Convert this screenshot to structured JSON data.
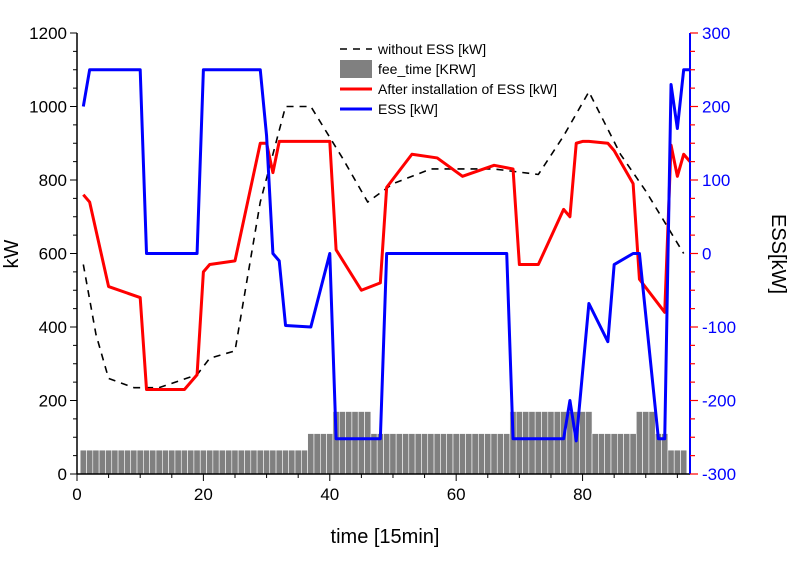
{
  "chart_data": {
    "type": "line",
    "title": "",
    "xlabel": "time [15min]",
    "ylabel": "kW",
    "y2label": "ESS[kW]",
    "xlim": [
      0,
      97
    ],
    "ylim": [
      0,
      1200
    ],
    "y2lim": [
      -300,
      300
    ],
    "x_ticks": [
      "0",
      "20",
      "40",
      "60",
      "80"
    ],
    "y_ticks": [
      "0",
      "200",
      "400",
      "600",
      "800",
      "1000",
      "1200"
    ],
    "y2_ticks": [
      "-300",
      "-200",
      "-100",
      "0",
      "100",
      "200",
      "300"
    ],
    "legend_position": "top-center",
    "grid": false,
    "series": [
      {
        "name": "without ESS [kW]",
        "axis": "left",
        "style": "dashed",
        "color": "#000000",
        "x": [
          1,
          3,
          5,
          9,
          13,
          19,
          21,
          25,
          29,
          33,
          37,
          42,
          46,
          50,
          56,
          62,
          66,
          73,
          77,
          81,
          86,
          90,
          96
        ],
        "y": [
          570,
          380,
          260,
          235,
          235,
          270,
          315,
          335,
          740,
          1000,
          1000,
          860,
          740,
          790,
          830,
          830,
          830,
          815,
          920,
          1040,
          870,
          770,
          600
        ]
      },
      {
        "name": "fee_time [KRW]",
        "axis": "left",
        "style": "bar",
        "color": "#808080",
        "x": [
          1,
          2,
          3,
          4,
          5,
          6,
          7,
          8,
          9,
          10,
          11,
          12,
          13,
          14,
          15,
          16,
          17,
          18,
          19,
          20,
          21,
          22,
          23,
          24,
          25,
          26,
          27,
          28,
          29,
          30,
          31,
          32,
          33,
          34,
          35,
          36,
          37,
          38,
          39,
          40,
          41,
          42,
          43,
          44,
          45,
          46,
          47,
          48,
          49,
          50,
          51,
          52,
          53,
          54,
          55,
          56,
          57,
          58,
          59,
          60,
          61,
          62,
          63,
          64,
          65,
          66,
          67,
          68,
          69,
          70,
          71,
          72,
          73,
          74,
          75,
          76,
          77,
          78,
          79,
          80,
          81,
          82,
          83,
          84,
          85,
          86,
          87,
          88,
          89,
          90,
          91,
          92,
          93,
          94,
          95,
          96
        ],
        "y": [
          65,
          65,
          65,
          65,
          65,
          65,
          65,
          65,
          65,
          65,
          65,
          65,
          65,
          65,
          65,
          65,
          65,
          65,
          65,
          65,
          65,
          65,
          65,
          65,
          65,
          65,
          65,
          65,
          65,
          65,
          65,
          65,
          65,
          65,
          65,
          65,
          110,
          110,
          110,
          110,
          170,
          170,
          170,
          170,
          170,
          170,
          110,
          110,
          110,
          110,
          110,
          110,
          110,
          110,
          110,
          110,
          110,
          110,
          110,
          110,
          110,
          110,
          110,
          110,
          110,
          110,
          110,
          110,
          170,
          170,
          170,
          170,
          170,
          170,
          170,
          170,
          170,
          170,
          170,
          170,
          170,
          110,
          110,
          110,
          110,
          110,
          110,
          110,
          170,
          170,
          170,
          110,
          110,
          65,
          65,
          65
        ]
      },
      {
        "name": "After installation of ESS [kW]",
        "axis": "left",
        "style": "solid",
        "color": "#ff0000",
        "x": [
          1,
          2,
          5,
          10,
          11,
          17,
          19,
          20,
          21,
          25,
          29,
          30,
          31,
          32,
          40,
          41,
          45,
          48,
          49,
          53,
          57,
          61,
          66,
          69,
          70,
          73,
          77,
          78,
          79,
          80,
          81,
          84,
          85,
          88,
          89,
          93,
          94,
          95,
          96,
          97
        ],
        "y": [
          760,
          740,
          510,
          480,
          230,
          230,
          270,
          550,
          570,
          580,
          900,
          900,
          820,
          905,
          905,
          610,
          500,
          520,
          780,
          870,
          860,
          810,
          840,
          830,
          570,
          570,
          720,
          700,
          900,
          905,
          905,
          900,
          880,
          790,
          530,
          440,
          895,
          810,
          870,
          850
        ]
      },
      {
        "name": "ESS [kW]",
        "axis": "right",
        "style": "solid",
        "color": "#0000ff",
        "x": [
          1,
          2,
          10,
          11,
          19,
          20,
          29,
          30,
          31,
          32,
          33,
          37,
          40,
          41,
          48,
          49,
          68,
          69,
          73,
          77,
          78,
          79,
          81,
          84,
          85,
          88,
          89,
          92,
          93,
          94,
          95,
          96,
          97
        ],
        "y": [
          200,
          250,
          250,
          0,
          0,
          250,
          250,
          160,
          0,
          -10,
          -98,
          -100,
          0,
          -252,
          -252,
          0,
          0,
          -252,
          -252,
          -252,
          -200,
          -255,
          -68,
          -120,
          -15,
          0,
          0,
          -252,
          -252,
          230,
          170,
          250,
          250
        ]
      }
    ]
  }
}
